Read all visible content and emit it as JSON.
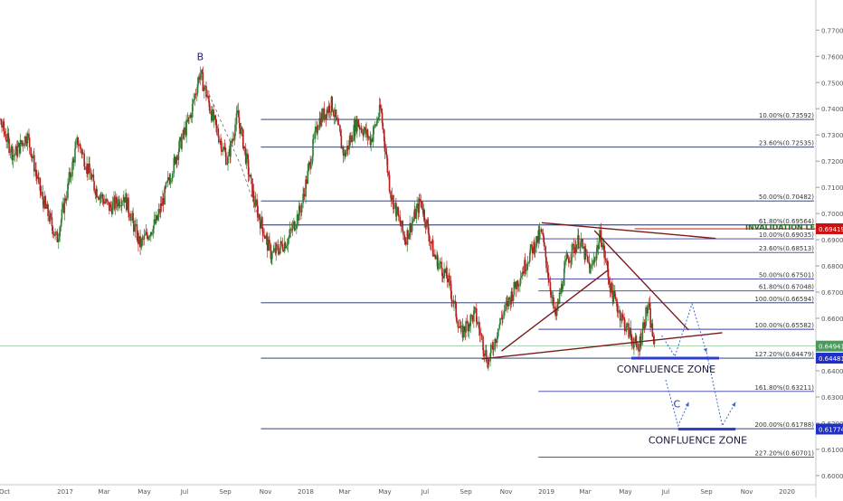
{
  "chart_data": {
    "type": "candlestick",
    "title": "",
    "xlabel": "",
    "ylabel": "",
    "ylim": [
      0.5965,
      0.7815
    ],
    "y_ticks": [
      0.6,
      0.61,
      0.62,
      0.63,
      0.64,
      0.65,
      0.66,
      0.67,
      0.68,
      0.69,
      0.7,
      0.71,
      0.72,
      0.73,
      0.74,
      0.75,
      0.76,
      0.77
    ],
    "y_tick_labels": [
      "0.60000",
      "0.61000",
      "0.62000",
      "0.63000",
      "0.64000",
      "0.65000",
      "0.66000",
      "0.67000",
      "0.68000",
      "0.69000",
      "0.70000",
      "0.71000",
      "0.72000",
      "0.73000",
      "0.74000",
      "0.75000",
      "0.76000",
      "0.77000"
    ],
    "x_axis": {
      "start": "2016-09-01",
      "end": "2021-04-01",
      "labels": [
        {
          "date": "2016-10-01",
          "text": "Oct"
        },
        {
          "date": "2017-01-01",
          "text": "2017"
        },
        {
          "date": "2017-03-01",
          "text": "Mar"
        },
        {
          "date": "2017-05-01",
          "text": "May"
        },
        {
          "date": "2017-07-01",
          "text": "Jul"
        },
        {
          "date": "2017-09-01",
          "text": "Sep"
        },
        {
          "date": "2017-11-01",
          "text": "Nov"
        },
        {
          "date": "2018-01-01",
          "text": "2018"
        },
        {
          "date": "2018-03-01",
          "text": "Mar"
        },
        {
          "date": "2018-05-01",
          "text": "May"
        },
        {
          "date": "2018-07-01",
          "text": "Jul"
        },
        {
          "date": "2018-09-01",
          "text": "Sep"
        },
        {
          "date": "2018-11-01",
          "text": "Nov"
        },
        {
          "date": "2019-01-01",
          "text": "2019"
        },
        {
          "date": "2019-03-01",
          "text": "Mar"
        },
        {
          "date": "2019-05-01",
          "text": "May"
        },
        {
          "date": "2019-07-01",
          "text": "Jul"
        },
        {
          "date": "2019-09-01",
          "text": "Sep"
        },
        {
          "date": "2019-11-01",
          "text": "Nov"
        },
        {
          "date": "2020-01-01",
          "text": "2020"
        }
      ]
    },
    "price_path": [
      {
        "date": "2016-09-01",
        "price": 0.744
      },
      {
        "date": "2016-09-25",
        "price": 0.735
      },
      {
        "date": "2016-10-15",
        "price": 0.722
      },
      {
        "date": "2016-11-05",
        "price": 0.73
      },
      {
        "date": "2016-11-25",
        "price": 0.708
      },
      {
        "date": "2016-12-20",
        "price": 0.69
      },
      {
        "date": "2017-01-20",
        "price": 0.728
      },
      {
        "date": "2017-02-15",
        "price": 0.71
      },
      {
        "date": "2017-03-10",
        "price": 0.702
      },
      {
        "date": "2017-04-01",
        "price": 0.707
      },
      {
        "date": "2017-04-25",
        "price": 0.688
      },
      {
        "date": "2017-05-20",
        "price": 0.697
      },
      {
        "date": "2017-06-20",
        "price": 0.723
      },
      {
        "date": "2017-07-10",
        "price": 0.737
      },
      {
        "date": "2017-07-25",
        "price": 0.754
      },
      {
        "date": "2017-08-15",
        "price": 0.735
      },
      {
        "date": "2017-09-05",
        "price": 0.72
      },
      {
        "date": "2017-09-20",
        "price": 0.738
      },
      {
        "date": "2017-10-15",
        "price": 0.705
      },
      {
        "date": "2017-11-10",
        "price": 0.684
      },
      {
        "date": "2017-12-05",
        "price": 0.69
      },
      {
        "date": "2017-12-25",
        "price": 0.702
      },
      {
        "date": "2018-01-20",
        "price": 0.735
      },
      {
        "date": "2018-02-10",
        "price": 0.742
      },
      {
        "date": "2018-03-01",
        "price": 0.722
      },
      {
        "date": "2018-03-20",
        "price": 0.735
      },
      {
        "date": "2018-04-10",
        "price": 0.728
      },
      {
        "date": "2018-04-25",
        "price": 0.74
      },
      {
        "date": "2018-05-10",
        "price": 0.708
      },
      {
        "date": "2018-06-01",
        "price": 0.69
      },
      {
        "date": "2018-06-25",
        "price": 0.705
      },
      {
        "date": "2018-07-15",
        "price": 0.684
      },
      {
        "date": "2018-08-05",
        "price": 0.675
      },
      {
        "date": "2018-08-25",
        "price": 0.654
      },
      {
        "date": "2018-09-15",
        "price": 0.662
      },
      {
        "date": "2018-10-05",
        "price": 0.643
      },
      {
        "date": "2018-10-25",
        "price": 0.66
      },
      {
        "date": "2018-11-15",
        "price": 0.672
      },
      {
        "date": "2018-12-10",
        "price": 0.686
      },
      {
        "date": "2018-12-25",
        "price": 0.693
      },
      {
        "date": "2019-01-15",
        "price": 0.66
      },
      {
        "date": "2019-02-01",
        "price": 0.682
      },
      {
        "date": "2019-02-20",
        "price": 0.69
      },
      {
        "date": "2019-03-10",
        "price": 0.678
      },
      {
        "date": "2019-03-25",
        "price": 0.692
      },
      {
        "date": "2019-04-10",
        "price": 0.67
      },
      {
        "date": "2019-04-30",
        "price": 0.658
      },
      {
        "date": "2019-05-20",
        "price": 0.648
      },
      {
        "date": "2019-06-05",
        "price": 0.665
      },
      {
        "date": "2019-06-15",
        "price": 0.648
      }
    ],
    "fib_group_1": {
      "line_color": "#1a2a5e",
      "x_start": "2017-10-25",
      "label_suffix": true,
      "levels": [
        {
          "label": "10.00%(0.73592)",
          "price": 0.73592
        },
        {
          "label": "23.60%(0.72535)",
          "price": 0.72535
        },
        {
          "label": "50.00%(0.70482)",
          "price": 0.70482
        },
        {
          "label": "61.80%(0.69564)",
          "price": 0.69564
        },
        {
          "label": "100.00%(0.66594)",
          "price": 0.66594
        },
        {
          "label": "127.20%(0.64479)",
          "price": 0.64479
        },
        {
          "label": "200.00%(0.61788)",
          "price": 0.61788
        }
      ]
    },
    "fib_group_2": {
      "line_color": "#3a3ab0",
      "x_start": "2018-12-20",
      "levels": [
        {
          "label": "10.00%(0.69035)",
          "price": 0.69035
        },
        {
          "label": "23.60%(0.68513)",
          "price": 0.68513
        },
        {
          "label": "50.00%(0.67501)",
          "price": 0.67501
        },
        {
          "label": "61.80%(0.67048)",
          "price": 0.67048
        },
        {
          "label": "100.00%(0.65582)",
          "price": 0.65582
        },
        {
          "label": "161.80%(0.63211)",
          "price": 0.63211
        },
        {
          "label": "227.20%(0.60701)",
          "price": 0.60701
        }
      ]
    },
    "current_price_line": {
      "price": 0.64941,
      "label": "0.64941",
      "color": "#4a9a5a"
    },
    "invalidation": {
      "label": "INVALIDATION LEVEL",
      "price": 0.69419,
      "tag": "0.69419",
      "color": "#cc1111"
    },
    "confluence_zones": [
      {
        "label": "CONFLUENCE ZONE",
        "price": 0.64481,
        "tag": "0.64481",
        "x_start": "2019-05-10",
        "x_end": "2019-09-20"
      },
      {
        "label": "CONFLUENCE ZONE",
        "price": 0.61774,
        "tag": "0.61774",
        "x_start": "2019-07-20",
        "x_end": "2019-10-15"
      }
    ],
    "wave_labels": [
      {
        "text": "B",
        "date": "2017-07-25",
        "price": 0.7585,
        "color": "#1a1a8a"
      },
      {
        "text": "C",
        "date": "2019-07-18",
        "price": 0.626,
        "color": "#2233aa"
      }
    ],
    "trendlines": [
      {
        "color": "#7a1a1a",
        "points": [
          {
            "date": "2018-12-25",
            "price": 0.6965
          },
          {
            "date": "2019-09-15",
            "price": 0.6905
          }
        ]
      },
      {
        "color": "#7a1a1a",
        "points": [
          {
            "date": "2018-09-25",
            "price": 0.6445
          },
          {
            "date": "2019-09-25",
            "price": 0.6545
          }
        ]
      },
      {
        "color": "#7a1a1a",
        "points": [
          {
            "date": "2018-10-25",
            "price": 0.6475
          },
          {
            "date": "2019-04-05",
            "price": 0.6785
          }
        ]
      },
      {
        "color": "#7a1a1a",
        "points": [
          {
            "date": "2019-03-15",
            "price": 0.6935
          },
          {
            "date": "2019-08-05",
            "price": 0.6555
          }
        ]
      }
    ],
    "projection_path": {
      "color": "#3a6ad0",
      "points": [
        {
          "date": "2019-06-25",
          "price": 0.6535
        },
        {
          "date": "2019-07-15",
          "price": 0.6455
        },
        {
          "date": "2019-08-10",
          "price": 0.6655
        },
        {
          "date": "2019-09-01",
          "price": 0.647
        }
      ]
    },
    "projection_path_2": {
      "color": "#3a6ad0",
      "points": [
        {
          "date": "2019-07-01",
          "price": 0.6365
        },
        {
          "date": "2019-07-20",
          "price": 0.619
        },
        {
          "date": "2019-08-05",
          "price": 0.628
        }
      ]
    },
    "projection_path_3": {
      "color": "#3a6ad0",
      "points": [
        {
          "date": "2019-09-01",
          "price": 0.647
        },
        {
          "date": "2019-09-25",
          "price": 0.619
        },
        {
          "date": "2019-10-15",
          "price": 0.628
        }
      ]
    }
  }
}
